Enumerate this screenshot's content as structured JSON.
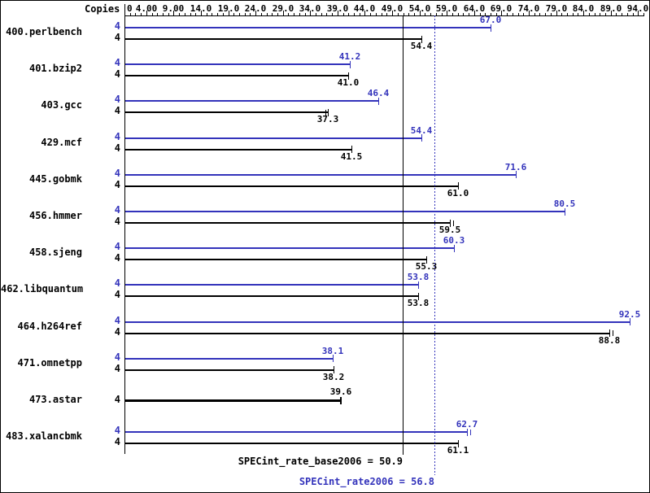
{
  "chart_data": {
    "type": "bar",
    "orientation": "horizontal",
    "copies_header": "Copies",
    "colors": {
      "peak": "#3333bb",
      "base": "#000000"
    },
    "axis": {
      "min": 0,
      "max": 95,
      "minor_step": 1,
      "label_step": 5,
      "ticks": [
        {
          "v": 0,
          "label": "0"
        },
        {
          "v": 4,
          "label": "4.00"
        },
        {
          "v": 9,
          "label": "9.00"
        },
        {
          "v": 14,
          "label": "14.0"
        },
        {
          "v": 19,
          "label": "19.0"
        },
        {
          "v": 24,
          "label": "24.0"
        },
        {
          "v": 29,
          "label": "29.0"
        },
        {
          "v": 34,
          "label": "34.0"
        },
        {
          "v": 39,
          "label": "39.0"
        },
        {
          "v": 44,
          "label": "44.0"
        },
        {
          "v": 49,
          "label": "49.0"
        },
        {
          "v": 54,
          "label": "54.0"
        },
        {
          "v": 59,
          "label": "59.0"
        },
        {
          "v": 64,
          "label": "64.0"
        },
        {
          "v": 69,
          "label": "69.0"
        },
        {
          "v": 74,
          "label": "74.0"
        },
        {
          "v": 79,
          "label": "79.0"
        },
        {
          "v": 84,
          "label": "84.0"
        },
        {
          "v": 89,
          "label": "89.0"
        },
        {
          "v": 94,
          "label": "94.0"
        }
      ]
    },
    "peak_series": "SPECint_rate2006",
    "base_series": "SPECint_rate_base2006",
    "benchmarks": [
      {
        "name": "400.perlbench",
        "copies": "4",
        "peak": 67.0,
        "peak_label": "67.0",
        "base": 54.4,
        "base_label": "54.4"
      },
      {
        "name": "401.bzip2",
        "copies": "4",
        "peak": 41.2,
        "peak_label": "41.2",
        "base": 41.0,
        "base_label": "41.0"
      },
      {
        "name": "403.gcc",
        "copies": "4",
        "peak": 46.4,
        "peak_label": "46.4",
        "base": 37.3,
        "base_label": "37.3",
        "base_ticks": [
          36.8
        ]
      },
      {
        "name": "429.mcf",
        "copies": "4",
        "peak": 54.4,
        "peak_label": "54.4",
        "base": 41.5,
        "base_label": "41.5"
      },
      {
        "name": "445.gobmk",
        "copies": "4",
        "peak": 71.6,
        "peak_label": "71.6",
        "base": 61.0,
        "base_label": "61.0"
      },
      {
        "name": "456.hmmer",
        "copies": "4",
        "peak": 80.5,
        "peak_label": "80.5",
        "base": 59.5,
        "base_label": "59.5",
        "base_ticks": [
          60.1
        ]
      },
      {
        "name": "458.sjeng",
        "copies": "4",
        "peak": 60.3,
        "peak_label": "60.3",
        "base": 55.3,
        "base_label": "55.3"
      },
      {
        "name": "462.libquantum",
        "copies": "4",
        "peak": 53.8,
        "peak_label": "53.8",
        "base": 53.8,
        "base_label": "53.8"
      },
      {
        "name": "464.h264ref",
        "copies": "4",
        "peak": 92.5,
        "peak_label": "92.5",
        "base": 88.8,
        "base_label": "88.8",
        "base_ticks": [
          89.4
        ]
      },
      {
        "name": "471.omnetpp",
        "copies": "4",
        "peak": 38.1,
        "peak_label": "38.1",
        "base": 38.2,
        "base_label": "38.2"
      },
      {
        "name": "473.astar",
        "copies": "4",
        "single": true,
        "base": 39.6,
        "base_label": "39.6"
      },
      {
        "name": "483.xalancbmk",
        "copies": "4",
        "peak": 62.7,
        "peak_label": "62.7",
        "base": 61.1,
        "base_label": "61.1",
        "peak_ticks": [
          63.3
        ]
      }
    ],
    "summary": {
      "base_text": "SPECint_rate_base2006 = 50.9",
      "base_value": 50.9,
      "peak_text": "SPECint_rate2006 = 56.8",
      "peak_value": 56.8
    }
  }
}
